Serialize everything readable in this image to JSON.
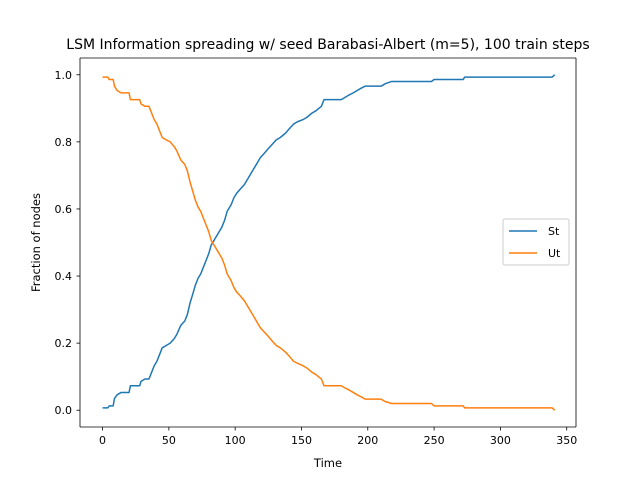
{
  "chart_data": {
    "type": "line",
    "title": "LSM Information spreading w/ seed Barabasi-Albert (m=5), 100 train steps",
    "xlabel": "Time",
    "ylabel": "Fraction of nodes",
    "xlim": [
      -17,
      357
    ],
    "ylim": [
      -0.05,
      1.05
    ],
    "x_ticks": [
      0,
      50,
      100,
      150,
      200,
      250,
      300,
      350
    ],
    "y_ticks": [
      0.0,
      0.2,
      0.4,
      0.6,
      0.8,
      1.0
    ],
    "x_tick_labels": [
      "0",
      "50",
      "100",
      "150",
      "200",
      "250",
      "300",
      "350"
    ],
    "y_tick_labels": [
      "0.0",
      "0.2",
      "0.4",
      "0.6",
      "0.8",
      "1.0"
    ],
    "grid": false,
    "legend_position": "center-right",
    "series": [
      {
        "name": "St",
        "color": "#1f77b4",
        "points": [
          [
            0,
            0.007
          ],
          [
            4,
            0.007
          ],
          [
            5,
            0.013
          ],
          [
            8,
            0.013
          ],
          [
            9,
            0.035
          ],
          [
            11,
            0.046
          ],
          [
            14,
            0.053
          ],
          [
            20,
            0.053
          ],
          [
            21,
            0.073
          ],
          [
            28,
            0.073
          ],
          [
            29,
            0.086
          ],
          [
            32,
            0.093
          ],
          [
            35,
            0.093
          ],
          [
            37,
            0.113
          ],
          [
            39,
            0.133
          ],
          [
            41,
            0.146
          ],
          [
            43,
            0.166
          ],
          [
            45,
            0.186
          ],
          [
            48,
            0.193
          ],
          [
            51,
            0.2
          ],
          [
            54,
            0.213
          ],
          [
            56,
            0.226
          ],
          [
            59,
            0.253
          ],
          [
            62,
            0.266
          ],
          [
            64,
            0.286
          ],
          [
            66,
            0.32
          ],
          [
            68,
            0.346
          ],
          [
            70,
            0.373
          ],
          [
            72,
            0.393
          ],
          [
            74,
            0.406
          ],
          [
            76,
            0.426
          ],
          [
            78,
            0.446
          ],
          [
            80,
            0.466
          ],
          [
            82,
            0.493
          ],
          [
            84,
            0.506
          ],
          [
            87,
            0.526
          ],
          [
            90,
            0.546
          ],
          [
            92,
            0.566
          ],
          [
            94,
            0.593
          ],
          [
            97,
            0.613
          ],
          [
            99,
            0.633
          ],
          [
            101,
            0.646
          ],
          [
            104,
            0.66
          ],
          [
            107,
            0.673
          ],
          [
            110,
            0.693
          ],
          [
            113,
            0.713
          ],
          [
            116,
            0.733
          ],
          [
            119,
            0.753
          ],
          [
            122,
            0.766
          ],
          [
            125,
            0.78
          ],
          [
            128,
            0.793
          ],
          [
            131,
            0.806
          ],
          [
            134,
            0.813
          ],
          [
            138,
            0.826
          ],
          [
            141,
            0.84
          ],
          [
            144,
            0.853
          ],
          [
            147,
            0.86
          ],
          [
            151,
            0.866
          ],
          [
            154,
            0.873
          ],
          [
            158,
            0.886
          ],
          [
            161,
            0.893
          ],
          [
            165,
            0.906
          ],
          [
            167,
            0.926
          ],
          [
            170,
            0.926
          ],
          [
            180,
            0.926
          ],
          [
            183,
            0.933
          ],
          [
            186,
            0.94
          ],
          [
            189,
            0.946
          ],
          [
            192,
            0.953
          ],
          [
            195,
            0.96
          ],
          [
            198,
            0.966
          ],
          [
            210,
            0.966
          ],
          [
            213,
            0.973
          ],
          [
            218,
            0.98
          ],
          [
            248,
            0.98
          ],
          [
            250,
            0.986
          ],
          [
            272,
            0.986
          ],
          [
            273,
            0.993
          ],
          [
            339,
            0.993
          ],
          [
            341,
            1.0
          ]
        ]
      },
      {
        "name": "Ut",
        "color": "#ff7f0e",
        "points": [
          [
            0,
            0.993
          ],
          [
            4,
            0.993
          ],
          [
            5,
            0.986
          ],
          [
            8,
            0.986
          ],
          [
            9,
            0.966
          ],
          [
            11,
            0.953
          ],
          [
            14,
            0.946
          ],
          [
            20,
            0.946
          ],
          [
            21,
            0.926
          ],
          [
            28,
            0.926
          ],
          [
            29,
            0.913
          ],
          [
            32,
            0.906
          ],
          [
            35,
            0.906
          ],
          [
            37,
            0.886
          ],
          [
            39,
            0.866
          ],
          [
            41,
            0.853
          ],
          [
            43,
            0.833
          ],
          [
            45,
            0.813
          ],
          [
            48,
            0.806
          ],
          [
            51,
            0.8
          ],
          [
            54,
            0.786
          ],
          [
            56,
            0.773
          ],
          [
            59,
            0.746
          ],
          [
            62,
            0.733
          ],
          [
            64,
            0.713
          ],
          [
            66,
            0.68
          ],
          [
            68,
            0.653
          ],
          [
            70,
            0.626
          ],
          [
            72,
            0.606
          ],
          [
            74,
            0.593
          ],
          [
            76,
            0.573
          ],
          [
            78,
            0.553
          ],
          [
            80,
            0.533
          ],
          [
            82,
            0.506
          ],
          [
            84,
            0.493
          ],
          [
            87,
            0.473
          ],
          [
            90,
            0.453
          ],
          [
            92,
            0.433
          ],
          [
            94,
            0.406
          ],
          [
            97,
            0.386
          ],
          [
            99,
            0.366
          ],
          [
            101,
            0.353
          ],
          [
            104,
            0.34
          ],
          [
            107,
            0.326
          ],
          [
            110,
            0.306
          ],
          [
            113,
            0.286
          ],
          [
            116,
            0.266
          ],
          [
            119,
            0.246
          ],
          [
            122,
            0.233
          ],
          [
            125,
            0.22
          ],
          [
            128,
            0.206
          ],
          [
            131,
            0.193
          ],
          [
            134,
            0.186
          ],
          [
            138,
            0.173
          ],
          [
            141,
            0.16
          ],
          [
            144,
            0.146
          ],
          [
            147,
            0.14
          ],
          [
            151,
            0.133
          ],
          [
            154,
            0.126
          ],
          [
            158,
            0.113
          ],
          [
            161,
            0.106
          ],
          [
            165,
            0.093
          ],
          [
            167,
            0.073
          ],
          [
            170,
            0.073
          ],
          [
            180,
            0.073
          ],
          [
            183,
            0.066
          ],
          [
            186,
            0.06
          ],
          [
            189,
            0.053
          ],
          [
            192,
            0.046
          ],
          [
            195,
            0.04
          ],
          [
            198,
            0.033
          ],
          [
            210,
            0.033
          ],
          [
            213,
            0.026
          ],
          [
            218,
            0.02
          ],
          [
            248,
            0.02
          ],
          [
            250,
            0.013
          ],
          [
            272,
            0.013
          ],
          [
            273,
            0.007
          ],
          [
            339,
            0.007
          ],
          [
            341,
            0.0
          ]
        ]
      }
    ]
  }
}
